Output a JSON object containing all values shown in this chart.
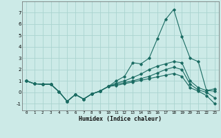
{
  "xlabel": "Humidex (Indice chaleur)",
  "bg_color": "#cceae7",
  "grid_color": "#aad4d0",
  "line_color": "#1a6b62",
  "xlim": [
    -0.5,
    23.5
  ],
  "ylim": [
    -1.6,
    8.0
  ],
  "xticks": [
    0,
    1,
    2,
    3,
    4,
    5,
    6,
    7,
    8,
    9,
    10,
    11,
    12,
    13,
    14,
    15,
    16,
    17,
    18,
    19,
    20,
    21,
    22,
    23
  ],
  "yticks": [
    -1,
    0,
    1,
    2,
    3,
    4,
    5,
    6,
    7
  ],
  "line1_x": [
    0,
    1,
    2,
    3,
    4,
    5,
    6,
    7,
    8,
    9,
    10,
    11,
    12,
    13,
    14,
    15,
    16,
    17,
    18,
    19,
    20,
    21,
    22,
    23
  ],
  "line1_y": [
    1.0,
    0.75,
    0.7,
    0.7,
    0.05,
    -0.8,
    -0.2,
    -0.6,
    -0.15,
    0.1,
    0.5,
    1.0,
    1.4,
    2.6,
    2.5,
    3.0,
    4.7,
    6.4,
    7.3,
    4.9,
    3.0,
    2.7,
    0.15,
    0.3
  ],
  "line2_x": [
    0,
    1,
    2,
    3,
    4,
    5,
    6,
    7,
    8,
    9,
    10,
    11,
    12,
    13,
    14,
    15,
    16,
    17,
    18,
    19,
    20,
    21,
    22,
    23
  ],
  "line2_y": [
    1.0,
    0.75,
    0.7,
    0.7,
    0.05,
    -0.8,
    -0.2,
    -0.6,
    -0.15,
    0.1,
    0.5,
    0.8,
    1.0,
    1.3,
    1.6,
    2.0,
    2.3,
    2.5,
    2.7,
    2.6,
    1.0,
    0.4,
    0.15,
    0.1
  ],
  "line3_x": [
    0,
    1,
    2,
    3,
    4,
    5,
    6,
    7,
    8,
    9,
    10,
    11,
    12,
    13,
    14,
    15,
    16,
    17,
    18,
    19,
    20,
    21,
    22,
    23
  ],
  "line3_y": [
    1.0,
    0.75,
    0.7,
    0.7,
    0.05,
    -0.8,
    -0.2,
    -0.6,
    -0.15,
    0.1,
    0.5,
    0.7,
    0.85,
    1.0,
    1.2,
    1.4,
    1.7,
    2.0,
    2.2,
    2.0,
    0.7,
    0.2,
    0.0,
    -0.5
  ],
  "line4_x": [
    0,
    1,
    2,
    3,
    4,
    5,
    6,
    7,
    8,
    9,
    10,
    11,
    12,
    13,
    14,
    15,
    16,
    17,
    18,
    19,
    20,
    21,
    22,
    23
  ],
  "line4_y": [
    1.0,
    0.75,
    0.7,
    0.7,
    0.05,
    -0.8,
    -0.2,
    -0.6,
    -0.15,
    0.1,
    0.5,
    0.6,
    0.75,
    0.9,
    1.05,
    1.2,
    1.35,
    1.5,
    1.65,
    1.4,
    0.4,
    0.1,
    -0.3,
    -1.0
  ]
}
